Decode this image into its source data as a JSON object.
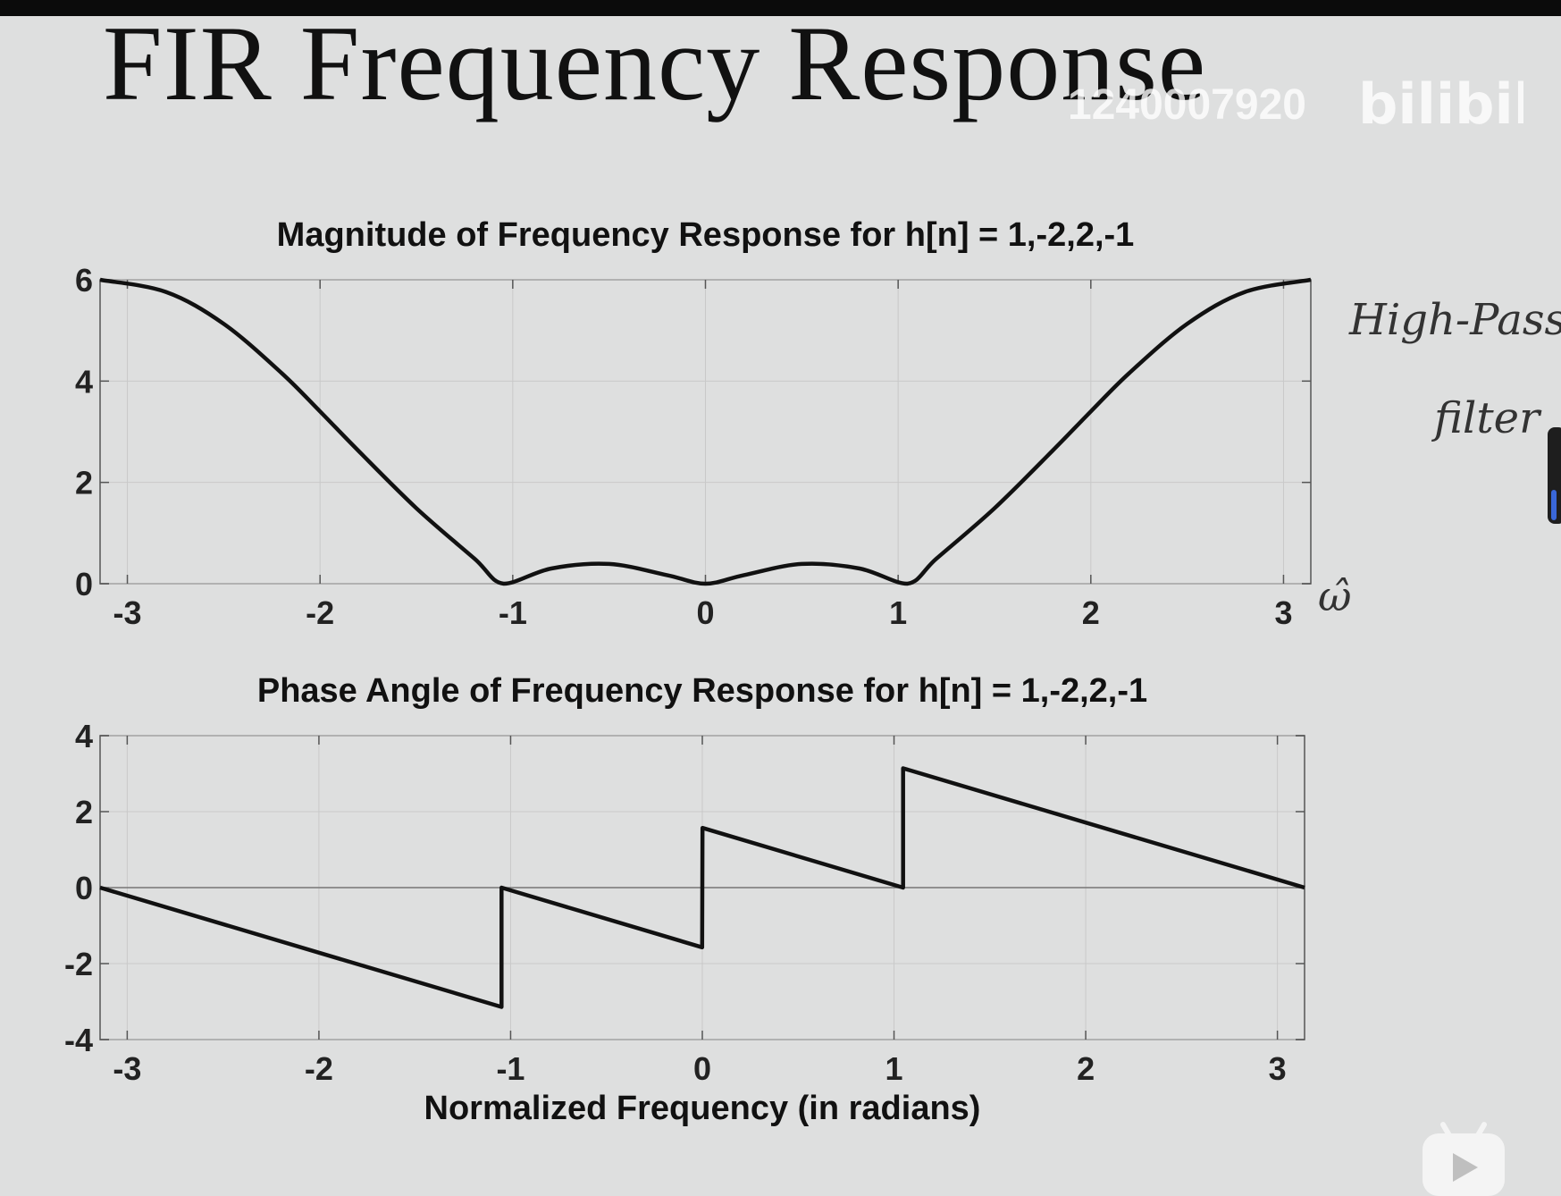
{
  "slide": {
    "title": "FIR Frequency Response",
    "watermark_id": "1240007920",
    "watermark_brand": "bilibili",
    "hand_note_line1": "High-Pass",
    "hand_note_line2": "filter",
    "omega_label": "ω̂"
  },
  "colors": {
    "curve": "#111111",
    "axis": "#555555",
    "grid": "#c9c9c9",
    "background": "#dedfdf"
  },
  "chart_data": [
    {
      "type": "line",
      "title": "Magnitude of Frequency Response for h[n] = 1,-2,2,-1",
      "xlabel": "",
      "ylabel": "",
      "xlim": [
        -3.1416,
        3.1416
      ],
      "ylim": [
        0,
        6
      ],
      "xticks": [
        -3,
        -2,
        -1,
        0,
        1,
        2,
        3
      ],
      "yticks": [
        0,
        2,
        4,
        6
      ],
      "grid": true,
      "series": [
        {
          "x": [
            -3.1416,
            -2.8,
            -2.5,
            -2.2,
            -2.0,
            -1.8,
            -1.5,
            -1.2,
            -1.0472,
            -0.8,
            -0.5,
            -0.2,
            0.0,
            0.2,
            0.5,
            0.8,
            1.0472,
            1.2,
            1.5,
            1.8,
            2.0,
            2.2,
            2.5,
            2.8,
            3.1416
          ],
          "y": [
            6.0,
            5.76,
            5.13,
            4.16,
            3.4,
            2.62,
            1.49,
            0.5,
            0.0,
            0.3,
            0.39,
            0.17,
            0.0,
            0.17,
            0.39,
            0.3,
            0.0,
            0.5,
            1.49,
            2.62,
            3.4,
            4.16,
            5.13,
            5.76,
            6.0
          ]
        }
      ]
    },
    {
      "type": "line",
      "title": "Phase Angle of Frequency Response for h[n] = 1,-2,2,-1",
      "xlabel": "Normalized Frequency (in radians)",
      "ylabel": "",
      "xlim": [
        -3.1416,
        3.1416
      ],
      "ylim": [
        -4,
        4
      ],
      "xticks": [
        -3,
        -2,
        -1,
        0,
        1,
        2,
        3
      ],
      "yticks": [
        -4,
        -2,
        0,
        2,
        4
      ],
      "grid": true,
      "series": [
        {
          "x": [
            -3.1416,
            -1.0472,
            -1.0472,
            -0.001,
            0.001,
            1.0472,
            1.0472,
            3.1416
          ],
          "y": [
            0.0,
            -3.1416,
            0.0,
            -1.5708,
            1.5708,
            0.0,
            3.1416,
            0.0
          ]
        }
      ]
    }
  ]
}
